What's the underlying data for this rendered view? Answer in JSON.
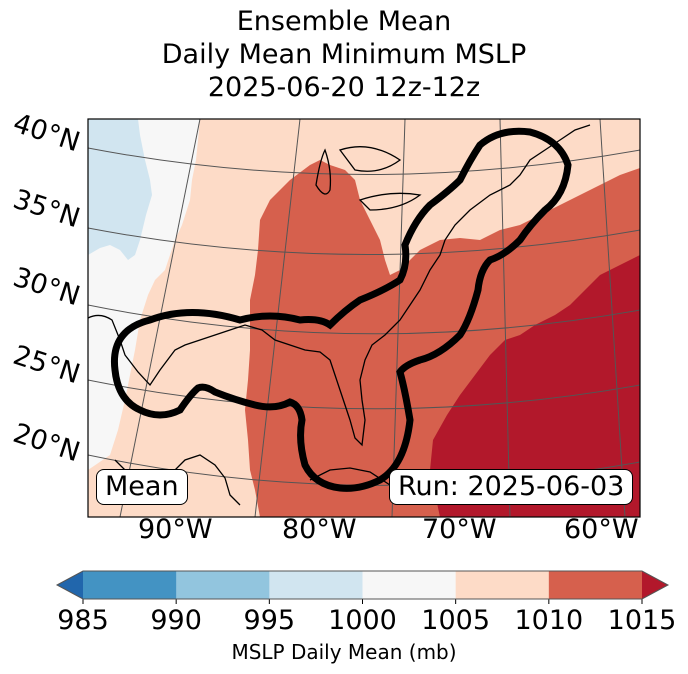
{
  "title": {
    "line1": "Ensemble Mean",
    "line2": "Daily Mean Minimum MSLP",
    "line3": "2025-06-20 12z-12z"
  },
  "map": {
    "lat_labels": [
      "40°N",
      "35°N",
      "30°N",
      "25°N",
      "20°N"
    ],
    "lon_labels": [
      "90°W",
      "80°W",
      "70°W",
      "60°W"
    ],
    "mean_box": "Mean",
    "run_box": "Run: 2025-06-03"
  },
  "colorbar": {
    "ticks": [
      "985",
      "990",
      "995",
      "1000",
      "1005",
      "1010",
      "1015"
    ],
    "label": "MSLP Daily Mean (mb)",
    "colors": [
      "#2166ac",
      "#4393c3",
      "#92c5de",
      "#d1e5f0",
      "#f7f7f7",
      "#fddbc7",
      "#d6604d",
      "#b2182b"
    ],
    "levels": [
      985,
      990,
      995,
      1000,
      1005,
      1010,
      1015
    ],
    "extend": "both"
  },
  "style": {
    "contour_color": "#000000",
    "grid_color": "#555555"
  }
}
